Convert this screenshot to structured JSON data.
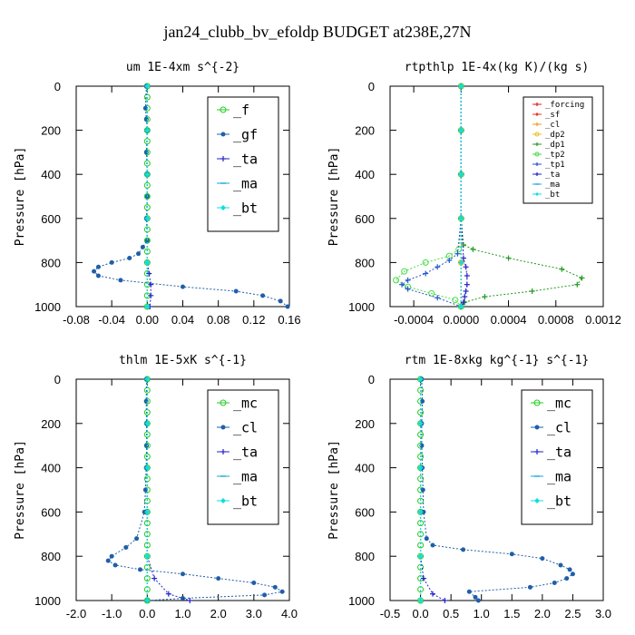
{
  "figure_title": "jan24_clubb_bv_efoldp  BUDGET at238E,27N",
  "chart_data": [
    {
      "type": "line",
      "title": "um  1E-4xm s^{-2}",
      "ylabel": "Pressure [hPa]",
      "xlim": [
        -0.08,
        0.16
      ],
      "ylim": [
        1000,
        0
      ],
      "xticks": [
        "-0.08",
        "-0.04",
        "0.00",
        "0.04",
        "0.08",
        "0.12",
        "0.16"
      ],
      "xtick_values": [
        -0.08,
        -0.04,
        0.0,
        0.04,
        0.08,
        0.12,
        0.16
      ],
      "yticks": [
        "0",
        "200",
        "400",
        "600",
        "800",
        "1000"
      ],
      "ytick_values": [
        0,
        200,
        400,
        600,
        800,
        1000
      ],
      "legend": {
        "position": "top-right",
        "size": "large"
      },
      "series": [
        {
          "name": "_f",
          "color": "#22cc22",
          "marker": "circle",
          "x": [
            0,
            0,
            0,
            0,
            0,
            0,
            0,
            0,
            0,
            0,
            0,
            0,
            0,
            0,
            0,
            0,
            0,
            0,
            0,
            0,
            0
          ],
          "y": [
            0,
            50,
            100,
            150,
            200,
            250,
            300,
            350,
            400,
            450,
            500,
            550,
            600,
            650,
            700,
            750,
            800,
            850,
            900,
            950,
            1000
          ]
        },
        {
          "name": "_gf",
          "color": "#1f5fa8",
          "marker": "dot",
          "x": [
            -0.001,
            -0.002,
            -0.001,
            0.0,
            -0.001,
            0.0,
            0.0,
            -0.001,
            0.0,
            -0.005,
            -0.01,
            -0.02,
            -0.04,
            -0.055,
            -0.06,
            -0.055,
            -0.03,
            0.04,
            0.1,
            0.13,
            0.15,
            0.158
          ],
          "y": [
            0,
            100,
            150,
            200,
            300,
            400,
            500,
            600,
            700,
            730,
            760,
            780,
            800,
            820,
            840,
            860,
            880,
            910,
            930,
            950,
            975,
            1000
          ]
        },
        {
          "name": "_ta",
          "color": "#2222cc",
          "marker": "plus",
          "x": [
            0,
            0,
            0,
            0,
            0,
            0.002,
            0.004,
            0.004,
            0.003
          ],
          "y": [
            0,
            200,
            400,
            600,
            800,
            850,
            900,
            950,
            1000
          ]
        },
        {
          "name": "_ma",
          "color": "#1aa3dd",
          "marker": "dash",
          "x": [
            0,
            0,
            0,
            0,
            0,
            0
          ],
          "y": [
            0,
            200,
            400,
            600,
            800,
            1000
          ]
        },
        {
          "name": "_bt",
          "color": "#11dddd",
          "marker": "diamond",
          "x": [
            0,
            0,
            0,
            0,
            0,
            0
          ],
          "y": [
            0,
            200,
            400,
            600,
            800,
            1000
          ]
        }
      ]
    },
    {
      "type": "line",
      "title": "rtpthlp  1E-4x(kg K)/(kg s)",
      "ylabel": "Pressure [hPa]",
      "xlim": [
        -0.0006,
        0.0012
      ],
      "ylim": [
        1000,
        0
      ],
      "xticks": [
        "-0.0004",
        "0.0000",
        "0.0004",
        "0.0008",
        "0.0012"
      ],
      "xtick_values": [
        -0.0004,
        0.0,
        0.0004,
        0.0008,
        0.0012
      ],
      "yticks": [
        "0",
        "200",
        "400",
        "600",
        "800",
        "1000"
      ],
      "ytick_values": [
        0,
        200,
        400,
        600,
        800,
        1000
      ],
      "legend": {
        "position": "top-right",
        "size": "small"
      },
      "series": [
        {
          "name": "_forcing",
          "color": "#dd2222",
          "marker": "plus",
          "x": [
            0,
            0,
            0,
            0,
            0,
            0
          ],
          "y": [
            0,
            200,
            400,
            600,
            800,
            1000
          ]
        },
        {
          "name": "_sf",
          "color": "#ee3322",
          "marker": "diamond",
          "x": [
            0,
            0,
            0,
            0,
            0,
            0
          ],
          "y": [
            0,
            200,
            400,
            600,
            800,
            1000
          ]
        },
        {
          "name": "_cl",
          "color": "#ee9922",
          "marker": "plus",
          "x": [
            0,
            0,
            0,
            0,
            0,
            0
          ],
          "y": [
            0,
            200,
            400,
            600,
            800,
            1000
          ]
        },
        {
          "name": "_dp2",
          "color": "#e8c020",
          "marker": "circle",
          "x": [
            0,
            0,
            0,
            0,
            0,
            0
          ],
          "y": [
            0,
            200,
            400,
            600,
            800,
            1000
          ]
        },
        {
          "name": "_dp1",
          "color": "#229922",
          "marker": "plus",
          "x": [
            0,
            0,
            0,
            0,
            2e-05,
            0.0001,
            0.0004,
            0.00085,
            0.00102,
            0.00098,
            0.0006,
            0.0002,
            3e-05,
            0
          ],
          "y": [
            0,
            200,
            400,
            600,
            720,
            740,
            780,
            830,
            870,
            900,
            930,
            955,
            980,
            1000
          ]
        },
        {
          "name": "_tp2",
          "color": "#44dd44",
          "marker": "circle",
          "x": [
            0,
            0,
            0,
            0,
            -2e-05,
            -0.0001,
            -0.0003,
            -0.00048,
            -0.00055,
            -0.00045,
            -0.00025,
            -5e-05,
            0
          ],
          "y": [
            0,
            200,
            400,
            600,
            740,
            770,
            800,
            840,
            880,
            910,
            940,
            970,
            1000
          ]
        },
        {
          "name": "_tp1",
          "color": "#2255cc",
          "marker": "plus",
          "x": [
            0,
            0,
            0,
            0,
            -3e-05,
            -0.0001,
            -0.0002,
            -0.0003,
            -0.00045,
            -0.0005,
            -0.00045,
            -0.0002,
            0
          ],
          "y": [
            0,
            200,
            400,
            600,
            760,
            790,
            820,
            850,
            880,
            900,
            920,
            960,
            1000
          ]
        },
        {
          "name": "_ta",
          "color": "#2222cc",
          "marker": "plus",
          "x": [
            0,
            0,
            0,
            0,
            2e-05,
            4e-05,
            5e-05,
            5e-05,
            4e-05,
            3e-05,
            2e-05,
            0
          ],
          "y": [
            0,
            200,
            400,
            600,
            780,
            820,
            860,
            900,
            930,
            955,
            980,
            1000
          ]
        },
        {
          "name": "_ma",
          "color": "#1aa3dd",
          "marker": "dash",
          "x": [
            0,
            0,
            0,
            0,
            0,
            0
          ],
          "y": [
            0,
            200,
            400,
            600,
            800,
            1000
          ]
        },
        {
          "name": "_bt",
          "color": "#11dddd",
          "marker": "diamond",
          "x": [
            0,
            0,
            0,
            0,
            0,
            0
          ],
          "y": [
            0,
            200,
            400,
            600,
            800,
            1000
          ]
        }
      ]
    },
    {
      "type": "line",
      "title": "thlm  1E-5xK s^{-1}",
      "ylabel": "Pressure [hPa]",
      "xlim": [
        -2.0,
        4.0
      ],
      "ylim": [
        1000,
        0
      ],
      "xticks": [
        "-2.0",
        "-1.0",
        "0.0",
        "1.0",
        "2.0",
        "3.0",
        "4.0"
      ],
      "xtick_values": [
        -2.0,
        -1.0,
        0.0,
        1.0,
        2.0,
        3.0,
        4.0
      ],
      "yticks": [
        "0",
        "200",
        "400",
        "600",
        "800",
        "1000"
      ],
      "ytick_values": [
        0,
        200,
        400,
        600,
        800,
        1000
      ],
      "legend": {
        "position": "top-right",
        "size": "large"
      },
      "series": [
        {
          "name": "_mc",
          "color": "#22cc22",
          "marker": "circle",
          "x": [
            0,
            0,
            0,
            0,
            0,
            0,
            0,
            0,
            0,
            0,
            0,
            0,
            0,
            0,
            0,
            0,
            0,
            0,
            0,
            0,
            0
          ],
          "y": [
            0,
            50,
            100,
            150,
            200,
            250,
            300,
            350,
            400,
            450,
            500,
            550,
            600,
            650,
            700,
            750,
            800,
            850,
            900,
            950,
            1000
          ]
        },
        {
          "name": "_cl",
          "color": "#1f5fa8",
          "marker": "dot",
          "x": [
            -0.02,
            -0.03,
            -0.02,
            -0.02,
            -0.03,
            -0.05,
            -0.08,
            -0.3,
            -0.6,
            -1.0,
            -1.1,
            -0.9,
            -0.2,
            1.0,
            2.0,
            3.0,
            3.6,
            3.8,
            3.3,
            1.0,
            0.0
          ],
          "y": [
            0,
            100,
            200,
            300,
            400,
            500,
            600,
            720,
            760,
            800,
            820,
            840,
            860,
            880,
            900,
            920,
            940,
            960,
            975,
            990,
            1000
          ]
        },
        {
          "name": "_ta",
          "color": "#2222cc",
          "marker": "plus",
          "x": [
            0,
            0,
            0,
            0,
            0,
            0.2,
            0.6,
            1.2
          ],
          "y": [
            0,
            200,
            400,
            600,
            800,
            900,
            970,
            1000
          ]
        },
        {
          "name": "_ma",
          "color": "#1aa3dd",
          "marker": "dash",
          "x": [
            0,
            0,
            0,
            0,
            0,
            0
          ],
          "y": [
            0,
            200,
            400,
            600,
            800,
            1000
          ]
        },
        {
          "name": "_bt",
          "color": "#11dddd",
          "marker": "diamond",
          "x": [
            0,
            0,
            0,
            0,
            0,
            0
          ],
          "y": [
            0,
            200,
            400,
            600,
            800,
            1000
          ]
        }
      ]
    },
    {
      "type": "line",
      "title": "rtm  1E-8xkg kg^{-1} s^{-1}",
      "ylabel": "Pressure [hPa]",
      "xlim": [
        -0.5,
        3.0
      ],
      "ylim": [
        1000,
        0
      ],
      "xticks": [
        "-0.5",
        "0.0",
        "0.5",
        "1.0",
        "1.5",
        "2.0",
        "2.5",
        "3.0"
      ],
      "xtick_values": [
        -0.5,
        0.0,
        0.5,
        1.0,
        1.5,
        2.0,
        2.5,
        3.0
      ],
      "yticks": [
        "0",
        "200",
        "400",
        "600",
        "800",
        "1000"
      ],
      "ytick_values": [
        0,
        200,
        400,
        600,
        800,
        1000
      ],
      "legend": {
        "position": "top-right",
        "size": "large"
      },
      "series": [
        {
          "name": "_mc",
          "color": "#22cc22",
          "marker": "circle",
          "x": [
            0,
            0,
            0,
            0,
            0,
            0,
            0,
            0,
            0,
            0,
            0,
            0,
            0,
            0,
            0,
            0,
            0,
            0,
            0,
            0,
            0
          ],
          "y": [
            0,
            50,
            100,
            150,
            200,
            250,
            300,
            350,
            400,
            450,
            500,
            550,
            600,
            650,
            700,
            750,
            800,
            850,
            900,
            950,
            1000
          ]
        },
        {
          "name": "_cl",
          "color": "#1f5fa8",
          "marker": "dot",
          "x": [
            0.02,
            0.03,
            0.02,
            0.02,
            0.03,
            0.04,
            0.05,
            0.1,
            0.2,
            0.7,
            1.5,
            2.0,
            2.3,
            2.45,
            2.5,
            2.4,
            2.2,
            1.8,
            0.8,
            0.9,
            0.95
          ],
          "y": [
            0,
            100,
            200,
            300,
            400,
            500,
            600,
            720,
            750,
            770,
            790,
            810,
            840,
            860,
            880,
            900,
            920,
            940,
            960,
            985,
            1000
          ]
        },
        {
          "name": "_ta",
          "color": "#2222cc",
          "marker": "plus",
          "x": [
            0,
            0,
            0,
            0,
            0,
            0.05,
            0.2,
            0.4
          ],
          "y": [
            0,
            200,
            400,
            600,
            800,
            900,
            970,
            1000
          ]
        },
        {
          "name": "_ma",
          "color": "#1aa3dd",
          "marker": "dash",
          "x": [
            0,
            0,
            0,
            0,
            0,
            0
          ],
          "y": [
            0,
            200,
            400,
            600,
            800,
            1000
          ]
        },
        {
          "name": "_bt",
          "color": "#11dddd",
          "marker": "diamond",
          "x": [
            0,
            0,
            0,
            0,
            0,
            0
          ],
          "y": [
            0,
            200,
            400,
            600,
            800,
            1000
          ]
        }
      ]
    }
  ]
}
